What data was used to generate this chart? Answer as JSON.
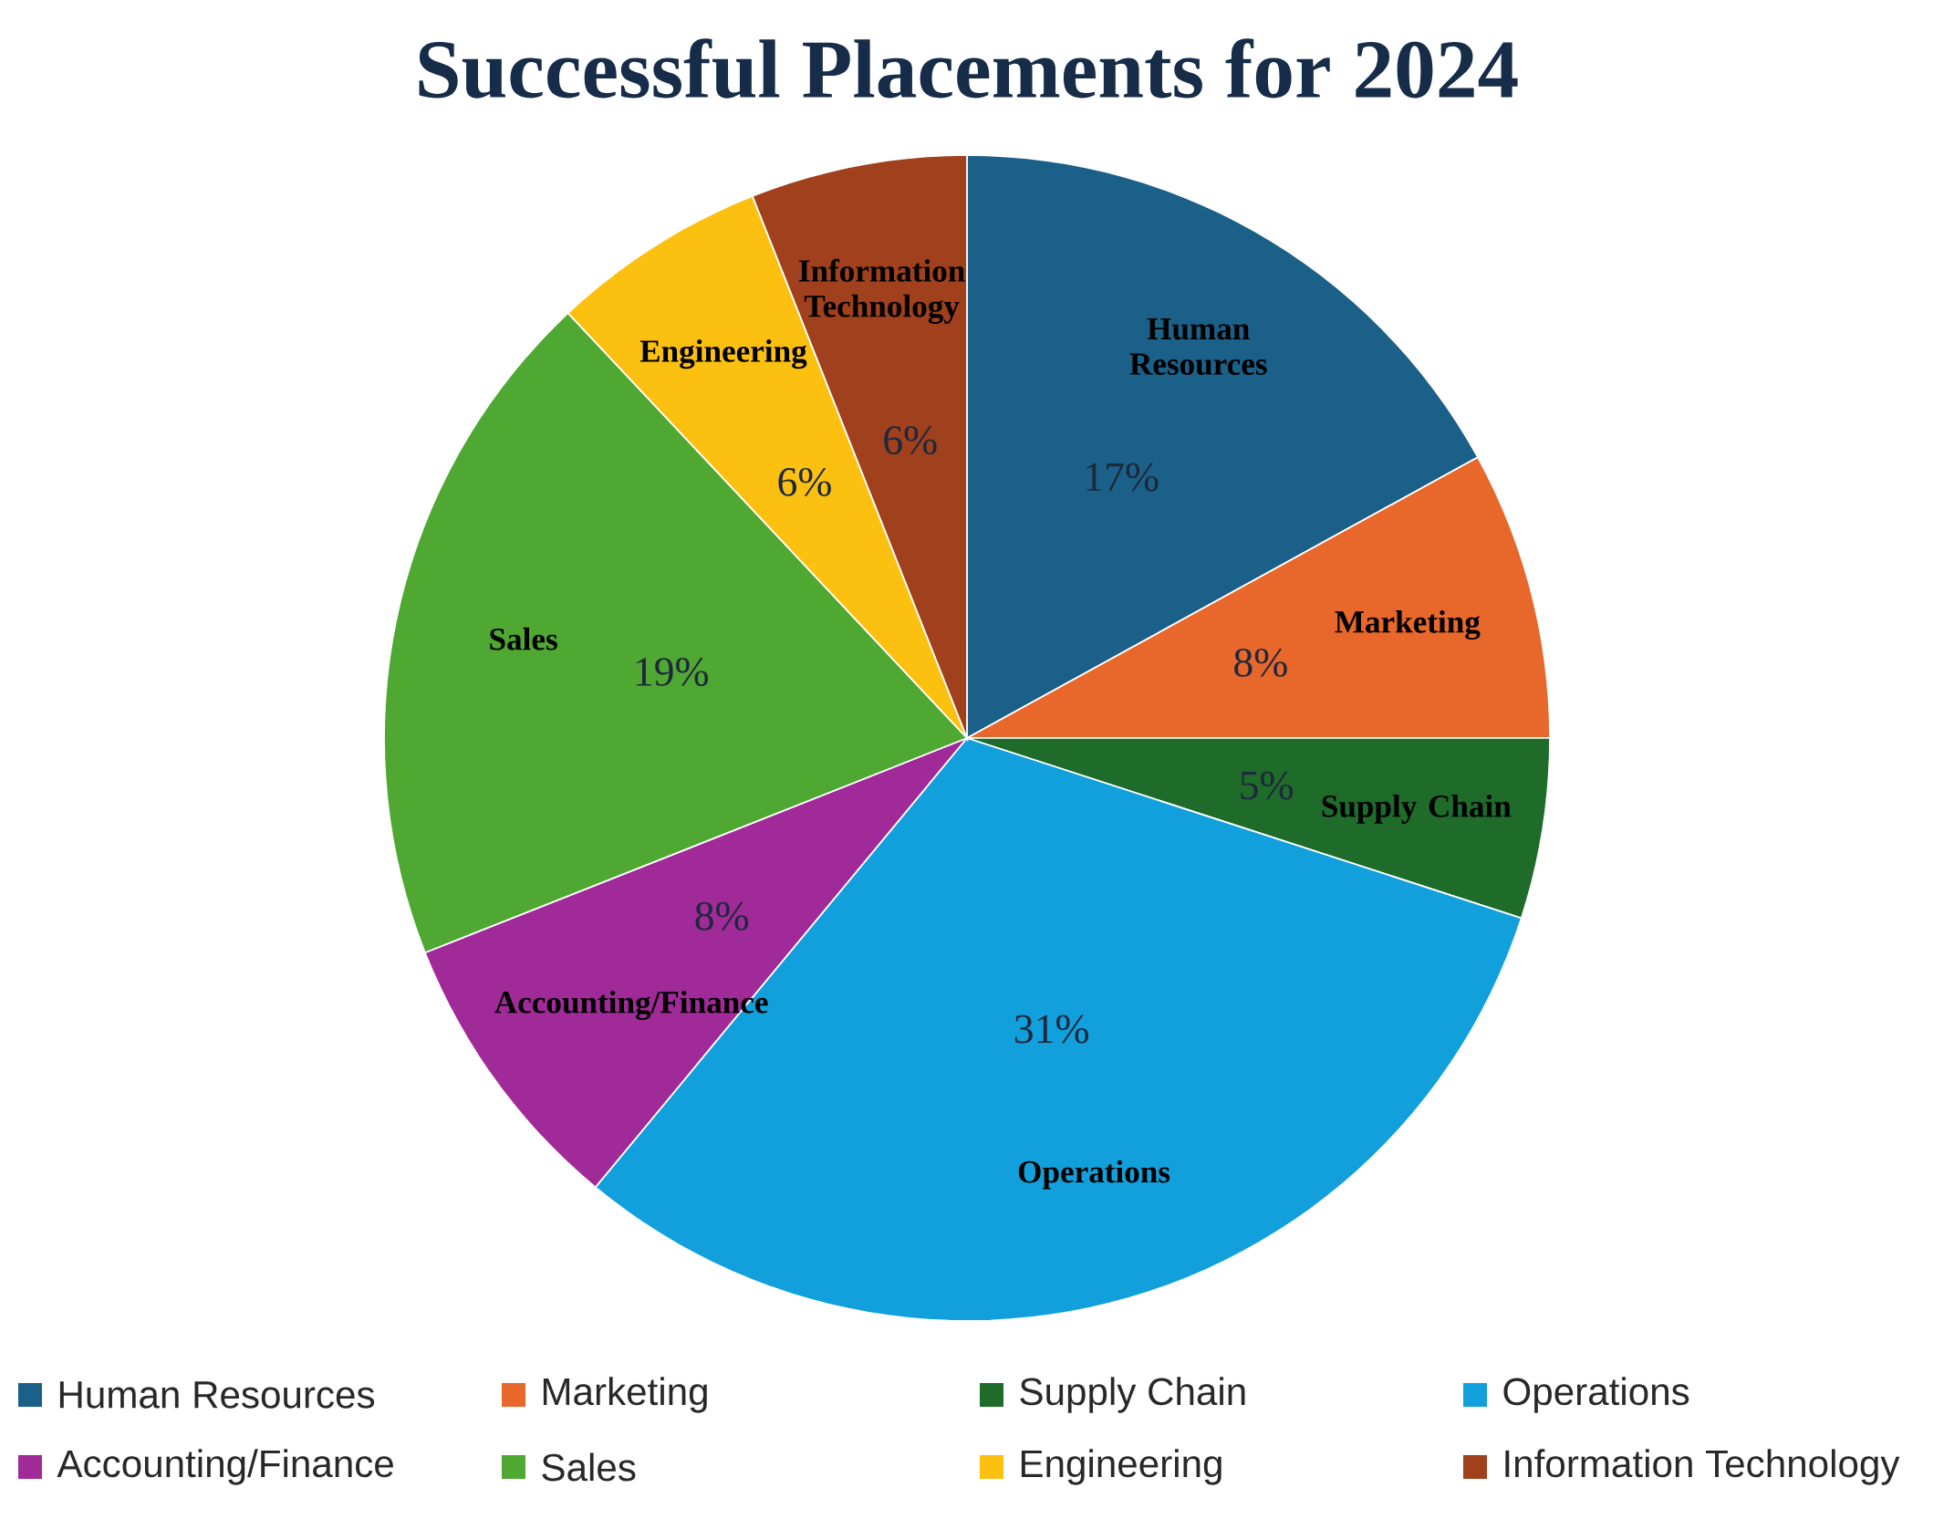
{
  "chart_data": {
    "type": "pie",
    "title": "Successful Placements for 2024",
    "categories": [
      "Human Resources",
      "Marketing",
      "Supply Chain",
      "Operations",
      "Accounting/Finance",
      "Sales",
      "Engineering",
      "Information Technology"
    ],
    "values": [
      17,
      8,
      5,
      31,
      8,
      19,
      6,
      6
    ],
    "value_labels": [
      "17%",
      "8%",
      "5%",
      "31%",
      "8%",
      "19%",
      "6%",
      "6%"
    ],
    "colors": [
      "#1b6088",
      "#e8672a",
      "#1e6b2a",
      "#12a0dc",
      "#a02a98",
      "#4fa832",
      "#fcc010",
      "#a0401c"
    ],
    "legend": "bottom"
  }
}
